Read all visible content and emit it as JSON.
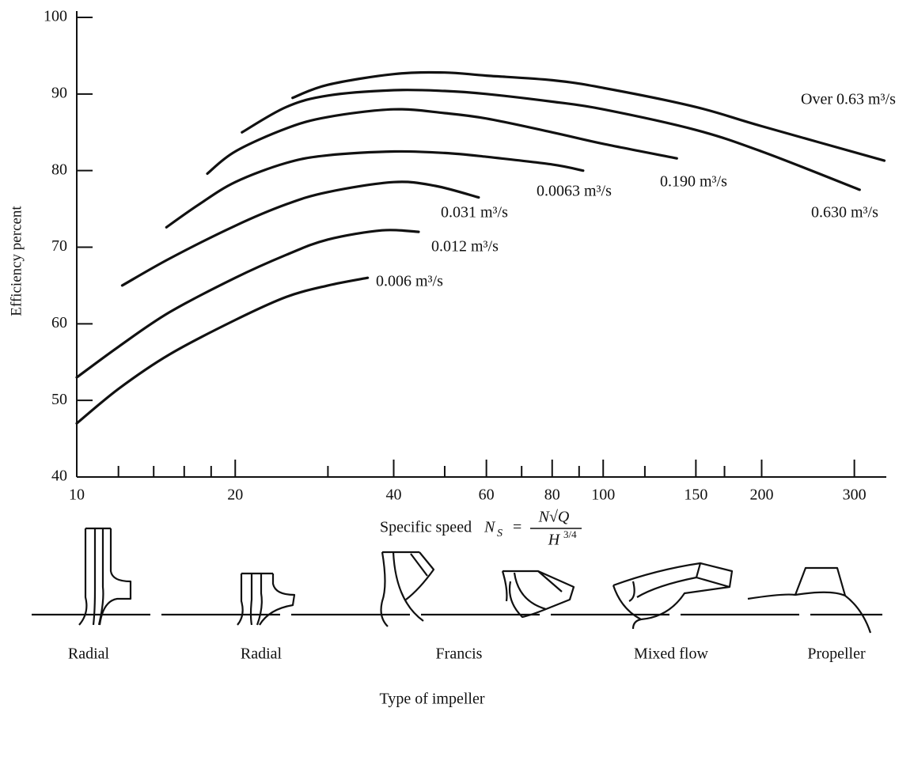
{
  "chart_data": {
    "type": "line",
    "y_label": "Efficiency percent",
    "x_label": {
      "text": "Specific speed",
      "symbol": "N",
      "subscript": "S",
      "equals": "=",
      "numerator": "N√Q",
      "denominator": "H",
      "exponent": "3/4"
    },
    "x_scale": "log",
    "xlim": [
      10,
      345
    ],
    "xticks": [
      10,
      20,
      40,
      60,
      80,
      100,
      150,
      200,
      300
    ],
    "xminorticks": [
      12,
      14,
      16,
      18,
      30,
      50,
      70,
      90,
      120,
      170
    ],
    "ylim": [
      40,
      100
    ],
    "yticks": [
      40,
      50,
      60,
      70,
      80,
      90,
      100
    ],
    "color": "#111111",
    "series": [
      {
        "name": "Over 0.63 m³/s",
        "x": [
          25.7,
          30,
          40,
          50,
          60,
          80,
          100,
          150,
          200,
          342
        ],
        "values": [
          89.5,
          91.2,
          92.6,
          92.8,
          92.4,
          91.8,
          90.8,
          88.3,
          85.8,
          81.3
        ]
      },
      {
        "name": "0.630 m³/s",
        "x": [
          20.6,
          25,
          30,
          40,
          50,
          60,
          80,
          100,
          150,
          200,
          307
        ],
        "values": [
          85,
          88.3,
          89.8,
          90.5,
          90.4,
          90,
          89,
          88,
          85.3,
          82.5,
          77.5
        ]
      },
      {
        "name": "0.190 m³/s",
        "x": [
          17.7,
          20,
          25,
          30,
          40,
          50,
          60,
          80,
          100,
          138
        ],
        "values": [
          79.6,
          82.5,
          85.5,
          87,
          88,
          87.5,
          86.8,
          85,
          83.5,
          81.6
        ]
      },
      {
        "name": "0.0063 m³/s",
        "x": [
          14.8,
          17,
          20,
          25,
          30,
          40,
          50,
          60,
          80,
          91.6
        ],
        "values": [
          72.6,
          75.5,
          78.5,
          81,
          82,
          82.5,
          82.3,
          81.8,
          80.8,
          80
        ]
      },
      {
        "name": "0.031 m³/s",
        "x": [
          12.2,
          15,
          20,
          25,
          30,
          40,
          48,
          58
        ],
        "values": [
          65,
          68.5,
          72.8,
          75.6,
          77.2,
          78.5,
          78,
          76.5
        ]
      },
      {
        "name": "0.012 m³/s",
        "x": [
          10,
          12,
          15,
          20,
          25,
          30,
          38,
          44.6
        ],
        "values": [
          53,
          57,
          61.5,
          66,
          69,
          71,
          72.2,
          72
        ]
      },
      {
        "name": "0.006 m³/s",
        "x": [
          10,
          12,
          15,
          20,
          25,
          30,
          35.7
        ],
        "values": [
          47,
          51.5,
          56,
          60.5,
          63.5,
          65,
          66
        ]
      }
    ],
    "impellers": {
      "title": "Type of impeller",
      "labels": [
        "Radial",
        "Radial",
        "Francis",
        "Mixed flow",
        "Propeller"
      ]
    }
  }
}
